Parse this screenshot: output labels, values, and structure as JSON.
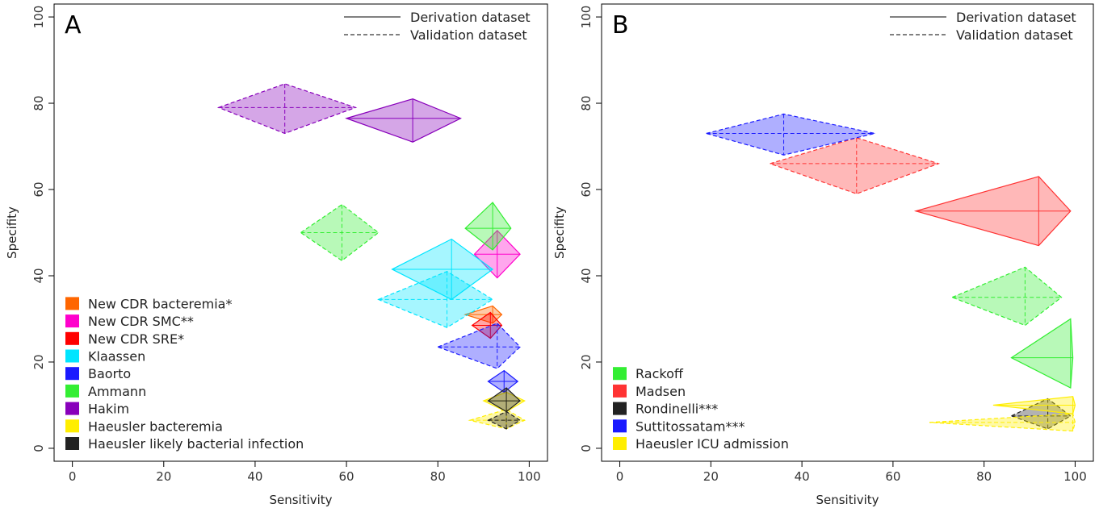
{
  "chart_data": [
    {
      "type": "scatter",
      "panel_label": "A",
      "xlabel": "Sensitivity",
      "ylabel": "Specifity",
      "xlim": [
        -4,
        104
      ],
      "ylim": [
        -3,
        103
      ],
      "xticks": [
        0,
        20,
        40,
        60,
        80,
        100
      ],
      "yticks": [
        0,
        20,
        40,
        60,
        80,
        100
      ],
      "line_legend": [
        {
          "label": "Derivation dataset",
          "style": "solid"
        },
        {
          "label": "Validation dataset",
          "style": "dashed"
        }
      ],
      "legend_position": "bottom-left",
      "series": [
        {
          "name": "New CDR bacteremia*",
          "color": "#ff6600",
          "estimates": [
            {
              "dataset": "derivation",
              "sens": 92,
              "sens_lo": 86,
              "sens_hi": 94,
              "spec": 31,
              "spec_lo": 29,
              "spec_hi": 33
            }
          ]
        },
        {
          "name": "New CDR SMC**",
          "color": "#ff00cc",
          "estimates": [
            {
              "dataset": "derivation",
              "sens": 93,
              "sens_lo": 88,
              "sens_hi": 98,
              "spec": 45,
              "spec_lo": 39.5,
              "spec_hi": 50.5
            }
          ]
        },
        {
          "name": "New CDR SRE*",
          "color": "#ff0000",
          "estimates": [
            {
              "dataset": "derivation",
              "sens": 91.5,
              "sens_lo": 87.5,
              "sens_hi": 94,
              "spec": 28.5,
              "spec_lo": 25.5,
              "spec_hi": 31.5
            }
          ]
        },
        {
          "name": "Klaassen",
          "color": "#00e5ff",
          "estimates": [
            {
              "dataset": "derivation",
              "sens": 83,
              "sens_lo": 70,
              "sens_hi": 92,
              "spec": 41.5,
              "spec_lo": 34.5,
              "spec_hi": 48.5
            },
            {
              "dataset": "validation",
              "sens": 82,
              "sens_lo": 67,
              "sens_hi": 92,
              "spec": 34.5,
              "spec_lo": 28,
              "spec_hi": 41
            }
          ]
        },
        {
          "name": "Baorto",
          "color": "#1a1aff",
          "estimates": [
            {
              "dataset": "derivation",
              "sens": 94.5,
              "sens_lo": 91,
              "sens_hi": 97.5,
              "spec": 15.5,
              "spec_lo": 13,
              "spec_hi": 18
            },
            {
              "dataset": "validation",
              "sens": 93,
              "sens_lo": 80,
              "sens_hi": 98,
              "spec": 23.5,
              "spec_lo": 18.5,
              "spec_hi": 29
            }
          ]
        },
        {
          "name": "Ammann",
          "color": "#33ee33",
          "estimates": [
            {
              "dataset": "derivation",
              "sens": 92,
              "sens_lo": 86,
              "sens_hi": 96,
              "spec": 51,
              "spec_lo": 46,
              "spec_hi": 57
            },
            {
              "dataset": "validation",
              "sens": 59,
              "sens_lo": 50,
              "sens_hi": 67,
              "spec": 50,
              "spec_lo": 43.5,
              "spec_hi": 56.5
            }
          ]
        },
        {
          "name": "Hakim",
          "color": "#8800bb",
          "estimates": [
            {
              "dataset": "derivation",
              "sens": 74.5,
              "sens_lo": 60,
              "sens_hi": 85,
              "spec": 76.5,
              "spec_lo": 71,
              "spec_hi": 81
            },
            {
              "dataset": "validation",
              "sens": 46.5,
              "sens_lo": 32,
              "sens_hi": 62,
              "spec": 79,
              "spec_lo": 73,
              "spec_hi": 84.5
            }
          ]
        },
        {
          "name": "Haeusler bacteremia",
          "color": "#ffee00",
          "estimates": [
            {
              "dataset": "derivation",
              "sens": 95,
              "sens_lo": 90,
              "sens_hi": 99,
              "spec": 11,
              "spec_lo": 8.5,
              "spec_hi": 13
            },
            {
              "dataset": "validation",
              "sens": 95,
              "sens_lo": 87,
              "sens_hi": 99,
              "spec": 6.5,
              "spec_lo": 4.5,
              "spec_hi": 9
            }
          ]
        },
        {
          "name": "Haeusler likely bacterial infection",
          "color": "#222222",
          "estimates": [
            {
              "dataset": "derivation",
              "sens": 95,
              "sens_lo": 91,
              "sens_hi": 98,
              "spec": 11,
              "spec_lo": 8.5,
              "spec_hi": 14
            },
            {
              "dataset": "validation",
              "sens": 95,
              "sens_lo": 91,
              "sens_hi": 98,
              "spec": 6.5,
              "spec_lo": 4.5,
              "spec_hi": 8.5
            }
          ]
        }
      ]
    },
    {
      "type": "scatter",
      "panel_label": "B",
      "xlabel": "Sensitivity",
      "ylabel": "Specifity",
      "xlim": [
        -4,
        104
      ],
      "ylim": [
        -3,
        103
      ],
      "xticks": [
        0,
        20,
        40,
        60,
        80,
        100
      ],
      "yticks": [
        0,
        20,
        40,
        60,
        80,
        100
      ],
      "line_legend": [
        {
          "label": "Derivation dataset",
          "style": "solid"
        },
        {
          "label": "Validation dataset",
          "style": "dashed"
        }
      ],
      "legend_position": "bottom-left",
      "series": [
        {
          "name": "Rackoff",
          "color": "#33ee33",
          "estimates": [
            {
              "dataset": "derivation",
              "sens": 99,
              "sens_lo": 86,
              "sens_hi": 99.5,
              "spec": 21,
              "spec_lo": 14,
              "spec_hi": 30
            },
            {
              "dataset": "validation",
              "sens": 89,
              "sens_lo": 73,
              "sens_hi": 97,
              "spec": 35,
              "spec_lo": 28.5,
              "spec_hi": 42
            }
          ]
        },
        {
          "name": "Madsen",
          "color": "#ff3333",
          "estimates": [
            {
              "dataset": "derivation",
              "sens": 92,
              "sens_lo": 65,
              "sens_hi": 99,
              "spec": 55,
              "spec_lo": 47,
              "spec_hi": 63
            },
            {
              "dataset": "validation",
              "sens": 52,
              "sens_lo": 33,
              "sens_hi": 70,
              "spec": 66,
              "spec_lo": 59,
              "spec_hi": 72
            }
          ]
        },
        {
          "name": "Rondinelli***",
          "color": "#222222",
          "estimates": [
            {
              "dataset": "validation",
              "sens": 94,
              "sens_lo": 86,
              "sens_hi": 99,
              "spec": 7.5,
              "spec_lo": 4.5,
              "spec_hi": 11.5
            }
          ]
        },
        {
          "name": "Suttitossatam***",
          "color": "#1a1aff",
          "estimates": [
            {
              "dataset": "validation",
              "sens": 36,
              "sens_lo": 19,
              "sens_hi": 56,
              "spec": 73,
              "spec_lo": 68,
              "spec_hi": 77.5
            }
          ]
        },
        {
          "name": "Haeusler ICU admission",
          "color": "#ffee00",
          "estimates": [
            {
              "dataset": "derivation",
              "sens": 99.5,
              "sens_lo": 82,
              "sens_hi": 100,
              "spec": 10,
              "spec_lo": 8,
              "spec_hi": 12
            },
            {
              "dataset": "validation",
              "sens": 99.5,
              "sens_lo": 68,
              "sens_hi": 100,
              "spec": 6,
              "spec_lo": 4,
              "spec_hi": 8
            }
          ]
        }
      ]
    }
  ]
}
